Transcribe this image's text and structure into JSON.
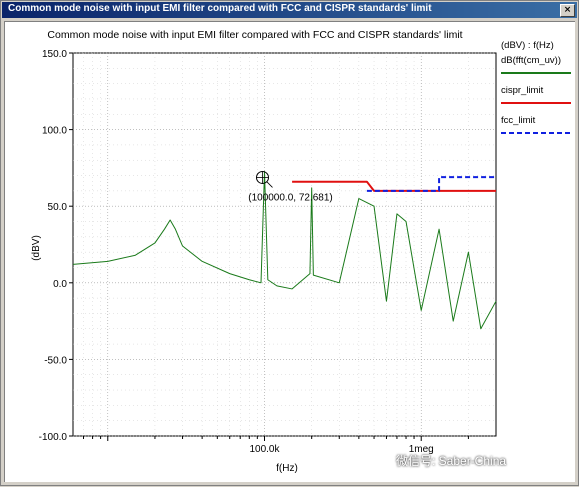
{
  "window": {
    "title": "Common mode noise with input EMI filter compared with FCC and CISPR standards' limit"
  },
  "chart_data": {
    "type": "line",
    "title": "Common mode noise with input EMI filter compared with FCC and CISPR standards' limit",
    "xlabel": "f(Hz)",
    "ylabel": "(dBV)",
    "xscale": "log",
    "xlim": [
      6000,
      3000000
    ],
    "ylim": [
      -100,
      150
    ],
    "y_ticks": [
      150,
      100,
      50,
      0,
      -50,
      -100
    ],
    "y_tick_labels": [
      "150.0",
      "100.0",
      "50.0",
      "0.0",
      "-50.0",
      "-100.0"
    ],
    "x_ticks": [
      100000,
      1000000
    ],
    "x_tick_labels": [
      "100.0k",
      "1meg"
    ],
    "grid": true,
    "legend_header": "(dBV) : f(Hz)",
    "legend_position": "right",
    "series": [
      {
        "name": "dB(fft(cm_uv))",
        "color": "#1a7a1a",
        "style": "solid",
        "points": [
          [
            6000,
            12
          ],
          [
            10000,
            14
          ],
          [
            15000,
            18
          ],
          [
            20000,
            26
          ],
          [
            23000,
            35
          ],
          [
            25000,
            41
          ],
          [
            27000,
            35
          ],
          [
            30000,
            24
          ],
          [
            40000,
            14
          ],
          [
            60000,
            6
          ],
          [
            80000,
            2
          ],
          [
            95000,
            0
          ],
          [
            100000,
            72.681
          ],
          [
            105000,
            2
          ],
          [
            120000,
            -2
          ],
          [
            150000,
            -4
          ],
          [
            195000,
            6
          ],
          [
            200000,
            62
          ],
          [
            205000,
            5
          ],
          [
            300000,
            0
          ],
          [
            400000,
            55
          ],
          [
            500000,
            50
          ],
          [
            600000,
            -12
          ],
          [
            700000,
            45
          ],
          [
            800000,
            40
          ],
          [
            1000000,
            -18
          ],
          [
            1300000,
            35
          ],
          [
            1600000,
            -25
          ],
          [
            2000000,
            20
          ],
          [
            2400000,
            -30
          ],
          [
            3000000,
            -12
          ]
        ]
      },
      {
        "name": "cispr_limit",
        "color": "#e01010",
        "style": "solid",
        "points": [
          [
            150000,
            66
          ],
          [
            450000,
            66
          ],
          [
            500000,
            60
          ],
          [
            3000000,
            60
          ]
        ]
      },
      {
        "name": "fcc_limit",
        "color": "#1020e0",
        "style": "dashed",
        "points": [
          [
            450000,
            60
          ],
          [
            1300000,
            60
          ],
          [
            1300000,
            69
          ],
          [
            3000000,
            69
          ]
        ]
      }
    ],
    "annotations": [
      {
        "text": "(100000.0, 72.681)",
        "x": 100000,
        "y": 72.681
      }
    ]
  },
  "watermark": "微信号: Saber-China"
}
